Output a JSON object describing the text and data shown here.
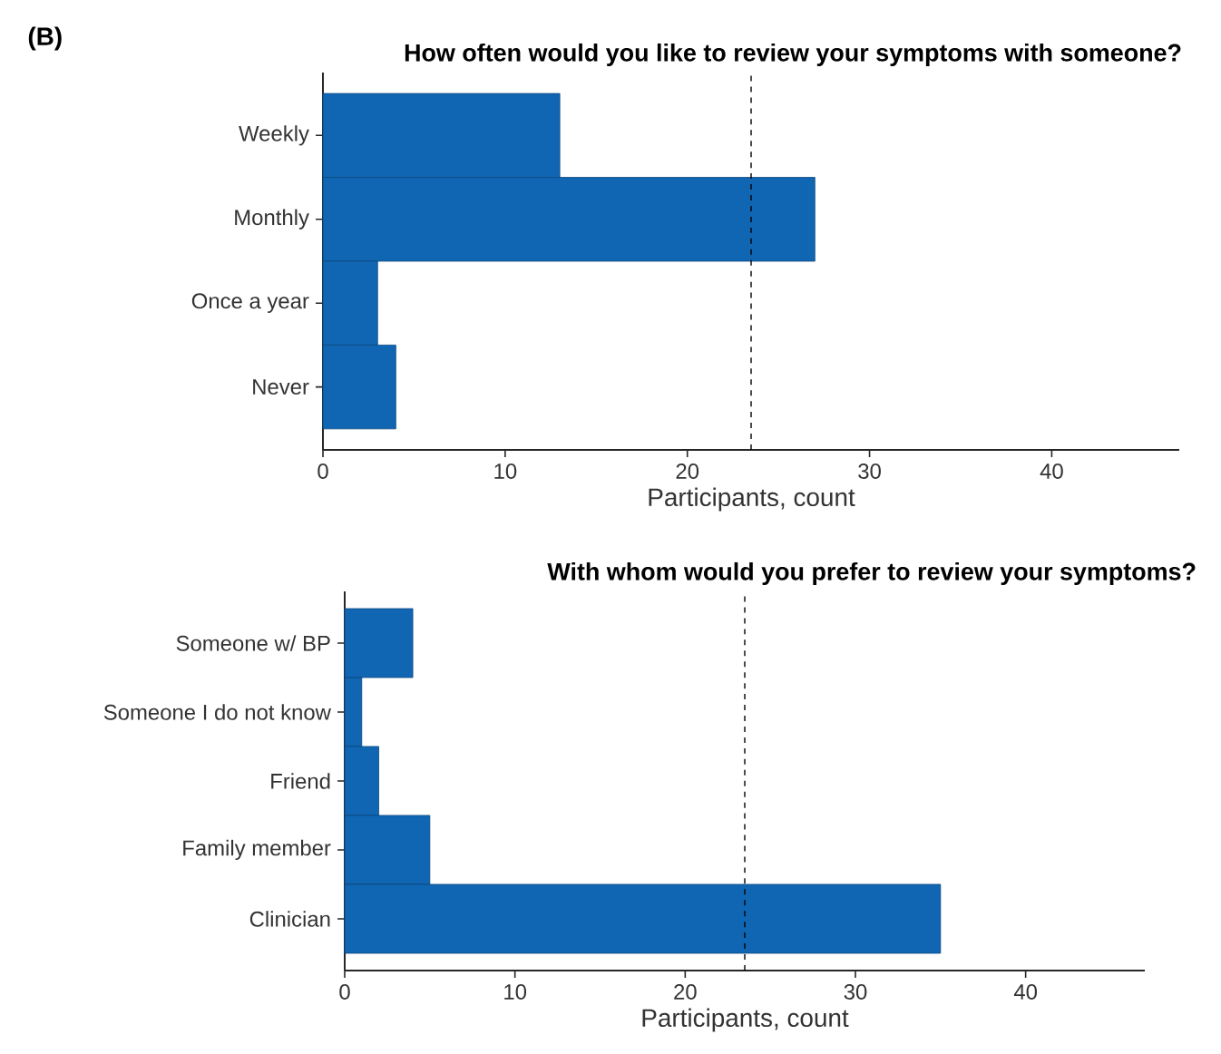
{
  "chart_data": [
    {
      "type": "bar",
      "orientation": "horizontal",
      "title": "How often would you like to review your symptoms with someone?",
      "annotations": [
        "(B)"
      ],
      "xlabel": "Participants, count",
      "categories": [
        "Weekly",
        "Monthly",
        "Once a year",
        "Never"
      ],
      "values": [
        13,
        27,
        3,
        4
      ],
      "color": "#1166b3",
      "xlim": [
        0,
        47
      ],
      "xticks": [
        0,
        10,
        20,
        30,
        40
      ],
      "ref_lines": [
        {
          "axis": "x",
          "value": 23.5,
          "line_style": "dashed",
          "color": "#000000"
        }
      ]
    },
    {
      "type": "bar",
      "orientation": "horizontal",
      "title": "With whom would you prefer to review your symptoms?",
      "xlabel": "Participants, count",
      "categories": [
        "Someone w/ BP",
        "Someone I do not know",
        "Friend",
        "Family member",
        "Clinician"
      ],
      "values": [
        4,
        1,
        2,
        5,
        35
      ],
      "color": "#1166b3",
      "xlim": [
        0,
        47
      ],
      "xticks": [
        0,
        10,
        20,
        30,
        40
      ],
      "ref_lines": [
        {
          "axis": "x",
          "value": 23.5,
          "line_style": "dashed",
          "color": "#000000"
        }
      ]
    }
  ]
}
